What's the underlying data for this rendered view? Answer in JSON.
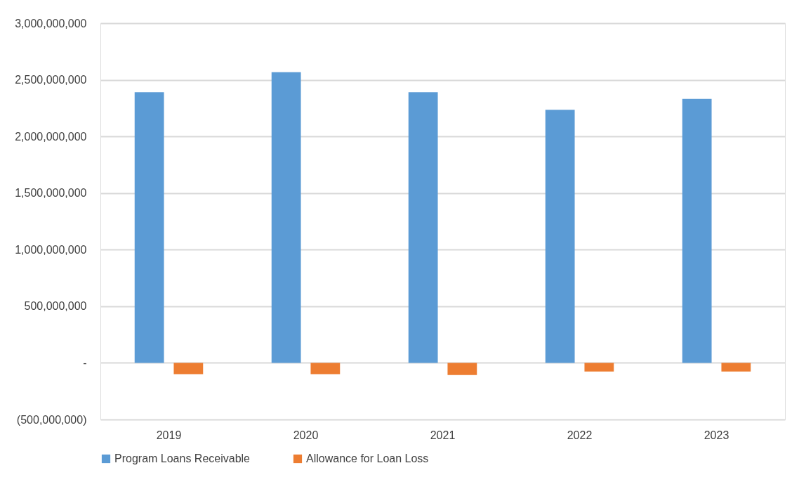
{
  "chart_data": {
    "type": "bar",
    "categories": [
      "2019",
      "2020",
      "2021",
      "2022",
      "2023"
    ],
    "series": [
      {
        "name": "Program Loans Receivable",
        "color": "#5b9bd5",
        "values": [
          2390000000,
          2567000000,
          2390000000,
          2235000000,
          2331000000
        ]
      },
      {
        "name": "Allowance for Loan Loss",
        "color": "#ed7d31",
        "values": [
          -100000000,
          -100000000,
          -107000000,
          -77000000,
          -77000000
        ]
      }
    ],
    "ylim": [
      -500000000,
      3000000000
    ],
    "yticks": [
      {
        "value": -500000000,
        "label": "(500,000,000)"
      },
      {
        "value": 0,
        "label": "-"
      },
      {
        "value": 500000000,
        "label": "500,000,000"
      },
      {
        "value": 1000000000,
        "label": "1,000,000,000"
      },
      {
        "value": 1500000000,
        "label": "1,500,000,000"
      },
      {
        "value": 2000000000,
        "label": "2,000,000,000"
      },
      {
        "value": 2500000000,
        "label": "2,500,000,000"
      },
      {
        "value": 3000000000,
        "label": "3,000,000,000"
      }
    ],
    "grid": "y",
    "legend": "bottom"
  }
}
